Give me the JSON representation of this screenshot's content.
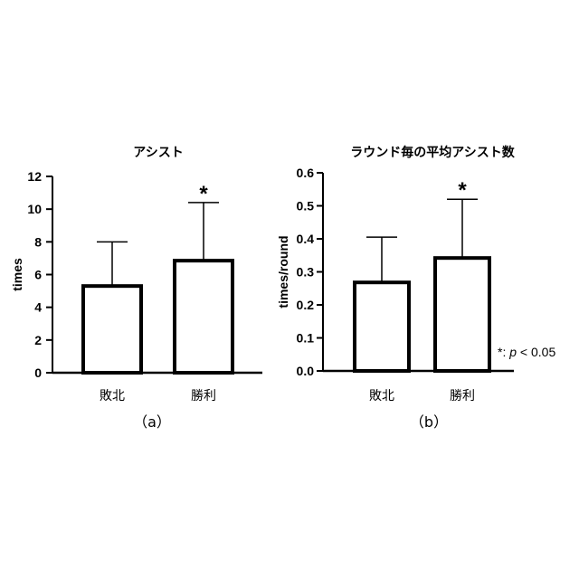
{
  "chart_data": [
    {
      "type": "bar",
      "panel_label": "（a）",
      "title": "アシスト",
      "ylabel": "times",
      "categories": [
        "敗北",
        "勝利"
      ],
      "values": [
        5.3,
        6.85
      ],
      "error_upper": [
        8.0,
        10.4
      ],
      "ylim": [
        0,
        12
      ],
      "yticks": [
        "0",
        "2",
        "4",
        "6",
        "8",
        "10",
        "12"
      ],
      "significance": [
        "",
        "*"
      ],
      "grid": false
    },
    {
      "type": "bar",
      "panel_label": "（b）",
      "title": "ラウンド毎の平均アシスト数",
      "ylabel": "times/round",
      "categories": [
        "敗北",
        "勝利"
      ],
      "values": [
        0.268,
        0.342
      ],
      "error_upper": [
        0.405,
        0.52
      ],
      "ylim": [
        0,
        0.6
      ],
      "yticks": [
        "0.0",
        "0.1",
        "0.2",
        "0.3",
        "0.4",
        "0.5",
        "0.6"
      ],
      "significance": [
        "",
        "*"
      ],
      "grid": false
    }
  ],
  "note": {
    "symbol": "*",
    "separator": ": ",
    "variable": "p",
    "rest": " < 0.05"
  }
}
